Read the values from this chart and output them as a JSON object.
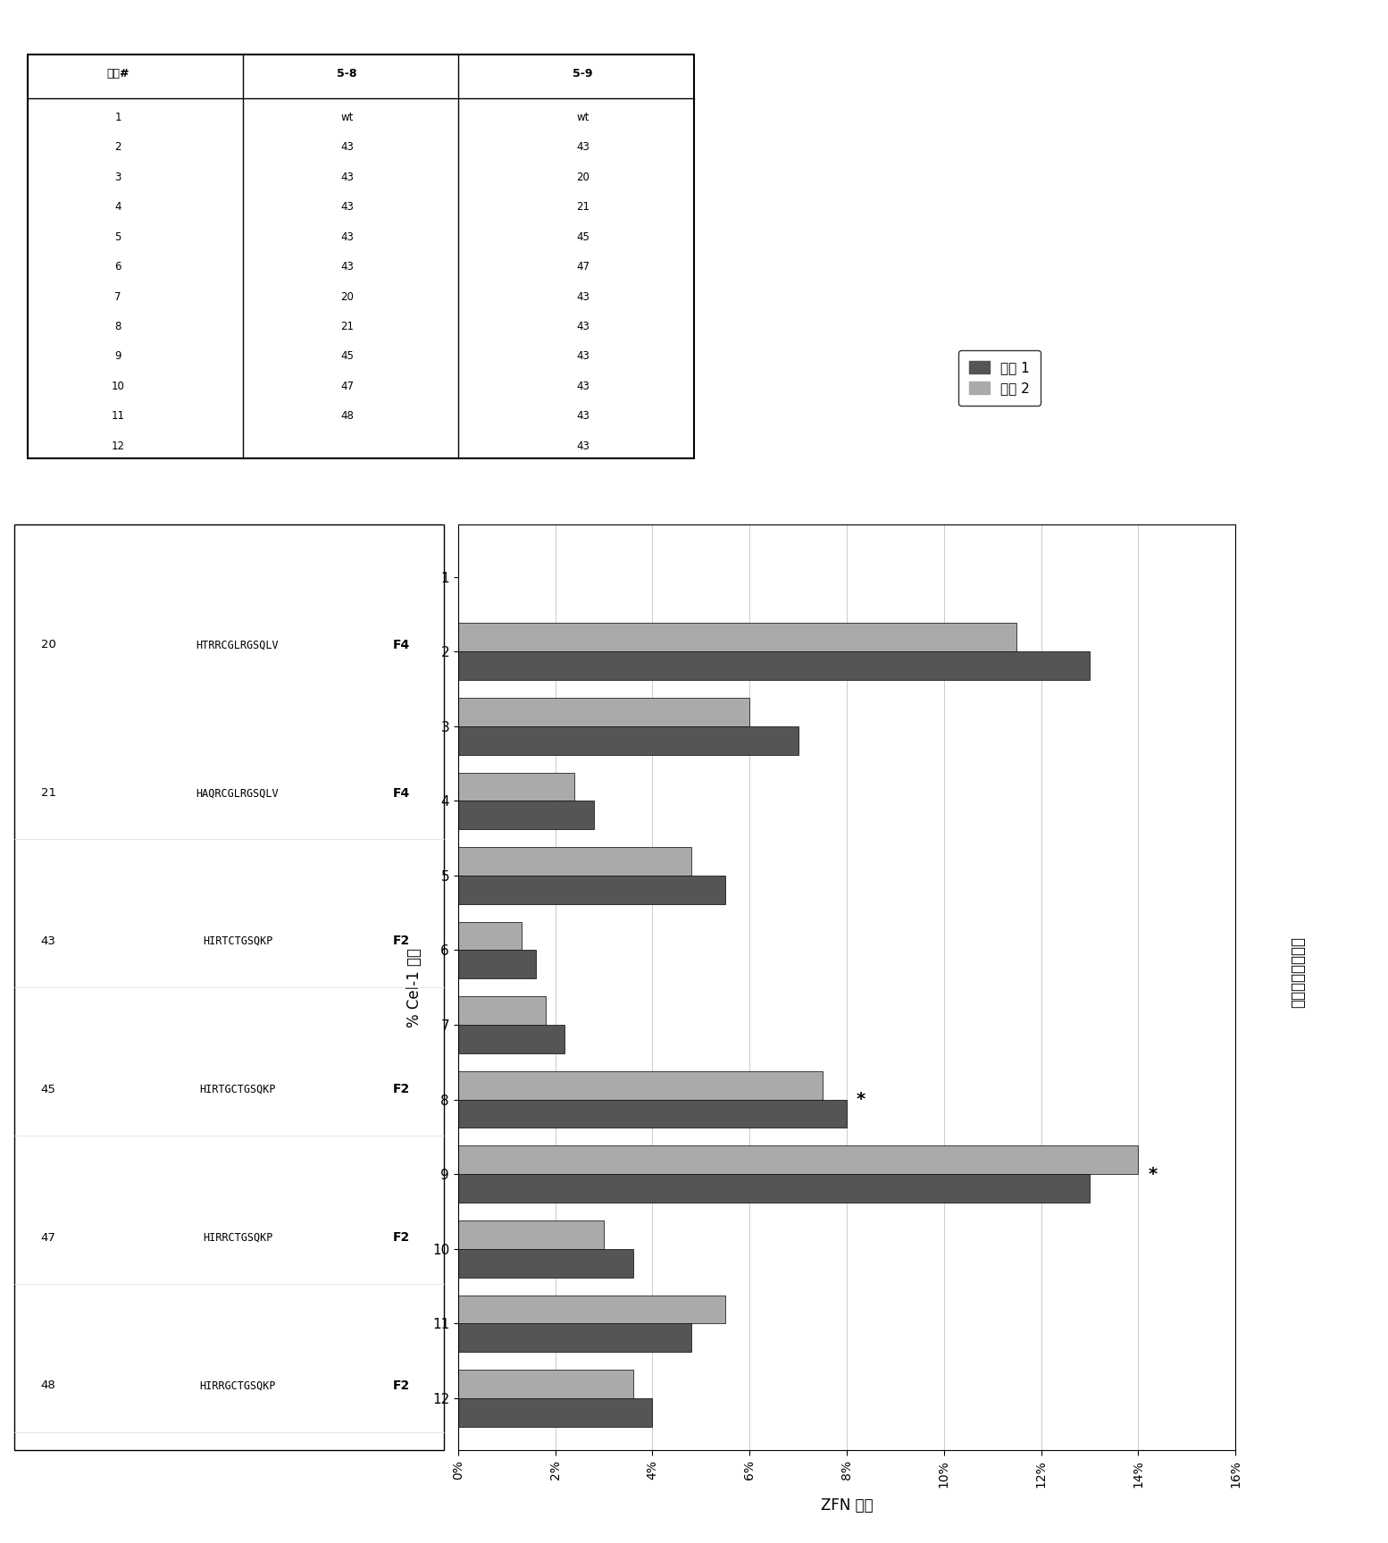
{
  "ylabel": "% Cel-1 活性",
  "xlabel": "ZFN 变体",
  "right_label": "由于泳道中的噪音",
  "legend_label1": "实施 1",
  "legend_label2": "实验 2",
  "xlim": [
    0,
    0.16
  ],
  "xticks": [
    0.0,
    0.02,
    0.04,
    0.06,
    0.08,
    0.1,
    0.12,
    0.14,
    0.16
  ],
  "xtick_labels": [
    "0%",
    "2%",
    "4%",
    "6%",
    "8%",
    "10%",
    "12%",
    "14%",
    "16%"
  ],
  "categories": [
    "1",
    "2",
    "3",
    "4",
    "5",
    "6",
    "7",
    "8",
    "9",
    "10",
    "11",
    "12"
  ],
  "exp1": [
    0.0,
    0.13,
    0.07,
    0.028,
    0.055,
    0.016,
    0.022,
    0.08,
    0.13,
    0.036,
    0.048,
    0.04
  ],
  "exp2": [
    0.0,
    0.115,
    0.06,
    0.024,
    0.048,
    0.013,
    0.018,
    0.075,
    0.14,
    0.03,
    0.055,
    0.036
  ],
  "exp1_color": "#555555",
  "exp2_color": "#aaaaaa",
  "bar_height": 0.38,
  "table_header": [
    "样品#",
    "5-8",
    "5-9"
  ],
  "table_col1": [
    "1",
    "2",
    "3",
    "4",
    "5",
    "6",
    "7",
    "8",
    "9",
    "10",
    "11",
    "12"
  ],
  "table_col2": [
    "wt",
    "43",
    "43",
    "43",
    "43",
    "43",
    "20",
    "21",
    "45",
    "47",
    "48",
    ""
  ],
  "table_col3": [
    "wt",
    "43",
    "20",
    "21",
    "45",
    "47",
    "43",
    "43",
    "43",
    "43",
    "43",
    "43"
  ],
  "left_labels_num": [
    "20",
    "21",
    "43",
    "45",
    "47",
    "48"
  ],
  "left_labels_seq": [
    "HTRRCGLRGSQLV",
    "HAQRCGLRGSQLV",
    "HIRTCTGSQKP",
    "HIRTGCTGSQKP",
    "HIRRCTGSQKP",
    "HIRRGCTGSQKP"
  ],
  "left_labels_ftype": [
    "F4",
    "F4",
    "F2",
    "F2",
    "F2",
    "F2"
  ],
  "star_samples_idx": [
    7,
    8
  ],
  "background_color": "#ffffff",
  "grid_color": "#cccccc"
}
